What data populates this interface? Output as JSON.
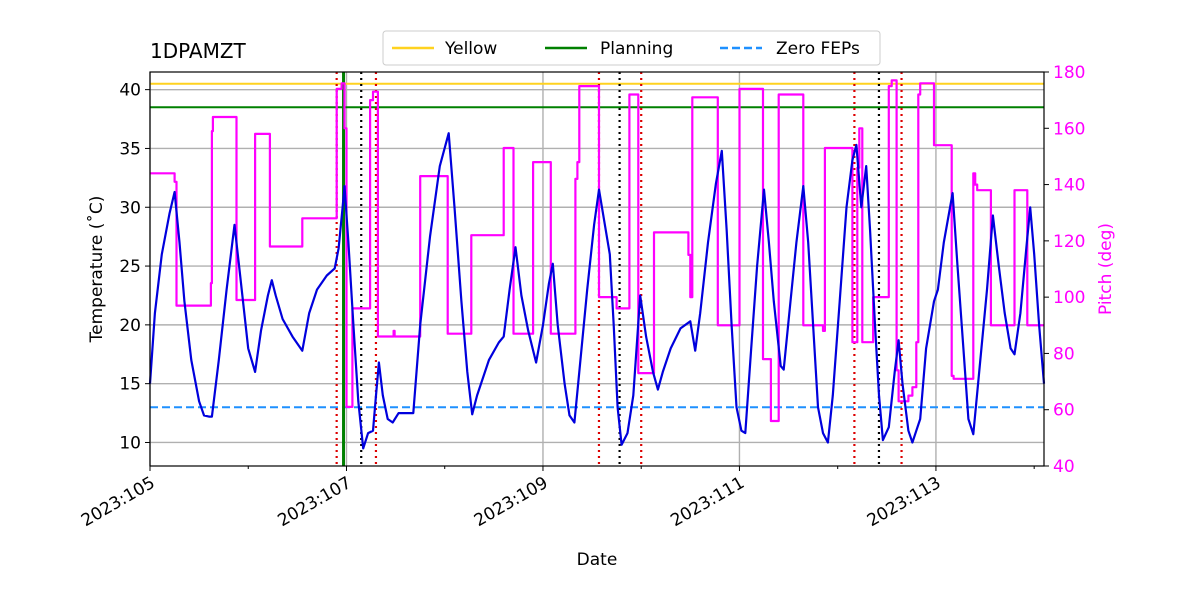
{
  "chart_data": {
    "type": "line",
    "title": "1DPAMZT",
    "xlabel": "Date",
    "ylabel": "Temperature ($^\\circ$C)",
    "ylabel_display": "Temperature (˚C)",
    "y2label": "Pitch (deg)",
    "xlim": [
      105.0,
      114.1
    ],
    "ylim": [
      8.0,
      41.5
    ],
    "y2lim": [
      40,
      180
    ],
    "x_ticks": [
      105,
      107,
      109,
      111,
      113
    ],
    "x_tick_labels": [
      "2023:105",
      "2023:107",
      "2023:109",
      "2023:111",
      "2023:113"
    ],
    "y_ticks": [
      10,
      15,
      20,
      25,
      30,
      35,
      40
    ],
    "y2_ticks": [
      40,
      60,
      80,
      100,
      120,
      140,
      160,
      180
    ],
    "grid": true,
    "legend_position": "top-center",
    "limits": [
      {
        "name": "Yellow",
        "value": 40.5,
        "color": "#ffd21f",
        "style": "solid"
      },
      {
        "name": "Planning",
        "value": 38.5,
        "color": "#008000",
        "style": "solid"
      },
      {
        "name": "Zero FEPs",
        "value": 13.0,
        "color": "#1e90ff",
        "style": "dashed"
      }
    ],
    "legend": [
      "Yellow",
      "Planning",
      "Zero FEPs"
    ],
    "events_red": [
      106.9,
      107.3,
      109.57,
      110.0,
      112.17,
      112.65
    ],
    "events_black": [
      107.15,
      109.78,
      112.42
    ],
    "event_green": 106.97,
    "series": [
      {
        "name": "1DPAMZT",
        "axis": "left",
        "color": "#0000dd",
        "points": [
          [
            105.0,
            15.0
          ],
          [
            105.05,
            21.0
          ],
          [
            105.12,
            26.0
          ],
          [
            105.2,
            29.5
          ],
          [
            105.25,
            31.3
          ],
          [
            105.3,
            27.0
          ],
          [
            105.35,
            22.0
          ],
          [
            105.42,
            17.0
          ],
          [
            105.5,
            13.5
          ],
          [
            105.55,
            12.3
          ],
          [
            105.6,
            12.2
          ],
          [
            105.63,
            12.2
          ],
          [
            105.7,
            17.0
          ],
          [
            105.78,
            23.0
          ],
          [
            105.86,
            28.5
          ],
          [
            105.92,
            24.0
          ],
          [
            106.0,
            18.0
          ],
          [
            106.07,
            16.0
          ],
          [
            106.13,
            19.5
          ],
          [
            106.2,
            22.5
          ],
          [
            106.24,
            23.8
          ],
          [
            106.28,
            22.5
          ],
          [
            106.35,
            20.5
          ],
          [
            106.45,
            19.0
          ],
          [
            106.55,
            17.8
          ],
          [
            106.62,
            21.0
          ],
          [
            106.7,
            23.0
          ],
          [
            106.8,
            24.2
          ],
          [
            106.88,
            24.8
          ],
          [
            106.92,
            26.5
          ],
          [
            106.96,
            30.0
          ],
          [
            106.98,
            31.8
          ],
          [
            107.02,
            27.0
          ],
          [
            107.07,
            20.0
          ],
          [
            107.12,
            13.5
          ],
          [
            107.17,
            9.5
          ],
          [
            107.22,
            10.8
          ],
          [
            107.27,
            11.0
          ],
          [
            107.3,
            14.0
          ],
          [
            107.33,
            16.8
          ],
          [
            107.37,
            14.0
          ],
          [
            107.42,
            12.0
          ],
          [
            107.47,
            11.7
          ],
          [
            107.53,
            12.5
          ],
          [
            107.62,
            12.5
          ],
          [
            107.68,
            12.5
          ],
          [
            107.75,
            20.0
          ],
          [
            107.85,
            27.5
          ],
          [
            107.95,
            33.5
          ],
          [
            108.04,
            36.3
          ],
          [
            108.1,
            30.0
          ],
          [
            108.17,
            22.0
          ],
          [
            108.23,
            16.0
          ],
          [
            108.28,
            12.4
          ],
          [
            108.33,
            14.0
          ],
          [
            108.45,
            17.0
          ],
          [
            108.55,
            18.5
          ],
          [
            108.6,
            19.0
          ],
          [
            108.66,
            23.0
          ],
          [
            108.72,
            26.6
          ],
          [
            108.78,
            22.5
          ],
          [
            108.85,
            19.5
          ],
          [
            108.93,
            16.8
          ],
          [
            109.0,
            20.0
          ],
          [
            109.06,
            23.5
          ],
          [
            109.1,
            25.2
          ],
          [
            109.15,
            20.0
          ],
          [
            109.22,
            15.0
          ],
          [
            109.27,
            12.3
          ],
          [
            109.32,
            11.7
          ],
          [
            109.37,
            16.0
          ],
          [
            109.45,
            23.0
          ],
          [
            109.52,
            28.5
          ],
          [
            109.57,
            31.5
          ],
          [
            109.62,
            29.0
          ],
          [
            109.68,
            26.0
          ],
          [
            109.72,
            20.0
          ],
          [
            109.76,
            13.0
          ],
          [
            109.8,
            9.8
          ],
          [
            109.86,
            10.8
          ],
          [
            109.92,
            14.0
          ],
          [
            109.99,
            22.5
          ],
          [
            110.05,
            19.0
          ],
          [
            110.12,
            16.0
          ],
          [
            110.17,
            14.5
          ],
          [
            110.22,
            16.0
          ],
          [
            110.3,
            18.0
          ],
          [
            110.4,
            19.7
          ],
          [
            110.5,
            20.3
          ],
          [
            110.55,
            17.8
          ],
          [
            110.6,
            21.0
          ],
          [
            110.68,
            27.0
          ],
          [
            110.76,
            32.0
          ],
          [
            110.82,
            34.8
          ],
          [
            110.87,
            28.0
          ],
          [
            110.92,
            20.0
          ],
          [
            110.97,
            13.0
          ],
          [
            111.02,
            11.0
          ],
          [
            111.06,
            10.8
          ],
          [
            111.12,
            18.0
          ],
          [
            111.18,
            25.0
          ],
          [
            111.25,
            31.5
          ],
          [
            111.3,
            27.0
          ],
          [
            111.35,
            22.0
          ],
          [
            111.42,
            16.5
          ],
          [
            111.45,
            16.2
          ],
          [
            111.52,
            22.0
          ],
          [
            111.58,
            27.0
          ],
          [
            111.65,
            31.8
          ],
          [
            111.7,
            27.0
          ],
          [
            111.75,
            20.0
          ],
          [
            111.8,
            13.0
          ],
          [
            111.85,
            10.8
          ],
          [
            111.9,
            10.0
          ],
          [
            111.95,
            14.0
          ],
          [
            112.02,
            22.0
          ],
          [
            112.09,
            30.0
          ],
          [
            112.15,
            34.0
          ],
          [
            112.19,
            35.3
          ],
          [
            112.24,
            30.0
          ],
          [
            112.29,
            33.5
          ],
          [
            112.33,
            28.0
          ],
          [
            112.38,
            20.0
          ],
          [
            112.42,
            14.0
          ],
          [
            112.46,
            10.2
          ],
          [
            112.52,
            11.3
          ],
          [
            112.58,
            16.0
          ],
          [
            112.62,
            18.7
          ],
          [
            112.66,
            15.0
          ],
          [
            112.72,
            11.0
          ],
          [
            112.76,
            10.0
          ],
          [
            112.8,
            11.0
          ],
          [
            112.84,
            12.0
          ],
          [
            112.9,
            18.0
          ],
          [
            112.98,
            22.0
          ],
          [
            113.02,
            23.0
          ],
          [
            113.08,
            27.0
          ],
          [
            113.17,
            31.2
          ],
          [
            113.22,
            25.0
          ],
          [
            113.28,
            18.0
          ],
          [
            113.33,
            12.0
          ],
          [
            113.38,
            10.7
          ],
          [
            113.44,
            16.0
          ],
          [
            113.52,
            23.0
          ],
          [
            113.58,
            29.3
          ],
          [
            113.64,
            25.0
          ],
          [
            113.7,
            21.0
          ],
          [
            113.76,
            18.0
          ],
          [
            113.8,
            17.5
          ],
          [
            113.86,
            21.0
          ],
          [
            113.92,
            26.5
          ],
          [
            113.96,
            30.0
          ],
          [
            114.0,
            26.0
          ],
          [
            114.05,
            20.0
          ],
          [
            114.1,
            15.0
          ]
        ]
      },
      {
        "name": "Pitch",
        "axis": "right",
        "color": "#ff00ff",
        "points": [
          [
            105.0,
            144
          ],
          [
            105.25,
            144
          ],
          [
            105.25,
            141
          ],
          [
            105.27,
            141
          ],
          [
            105.27,
            97
          ],
          [
            105.62,
            97
          ],
          [
            105.62,
            105
          ],
          [
            105.63,
            105
          ],
          [
            105.63,
            159
          ],
          [
            105.64,
            159
          ],
          [
            105.64,
            164
          ],
          [
            105.88,
            164
          ],
          [
            105.88,
            99
          ],
          [
            106.07,
            99
          ],
          [
            106.07,
            158
          ],
          [
            106.22,
            158
          ],
          [
            106.22,
            118
          ],
          [
            106.55,
            118
          ],
          [
            106.55,
            128
          ],
          [
            106.9,
            128
          ],
          [
            106.9,
            174
          ],
          [
            106.95,
            174
          ],
          [
            106.95,
            176
          ],
          [
            106.98,
            176
          ],
          [
            106.98,
            160
          ],
          [
            107.0,
            160
          ],
          [
            107.0,
            61
          ],
          [
            107.06,
            61
          ],
          [
            107.06,
            96
          ],
          [
            107.24,
            96
          ],
          [
            107.24,
            170
          ],
          [
            107.27,
            170
          ],
          [
            107.27,
            173
          ],
          [
            107.32,
            173
          ],
          [
            107.32,
            86
          ],
          [
            107.48,
            86
          ],
          [
            107.48,
            88
          ],
          [
            107.49,
            88
          ],
          [
            107.49,
            86
          ],
          [
            107.75,
            86
          ],
          [
            107.75,
            143
          ],
          [
            108.03,
            143
          ],
          [
            108.03,
            87
          ],
          [
            108.27,
            87
          ],
          [
            108.27,
            122
          ],
          [
            108.6,
            122
          ],
          [
            108.6,
            153
          ],
          [
            108.7,
            153
          ],
          [
            108.7,
            87
          ],
          [
            108.9,
            87
          ],
          [
            108.9,
            148
          ],
          [
            109.08,
            148
          ],
          [
            109.08,
            87
          ],
          [
            109.33,
            87
          ],
          [
            109.33,
            142
          ],
          [
            109.35,
            142
          ],
          [
            109.35,
            148
          ],
          [
            109.37,
            148
          ],
          [
            109.37,
            175
          ],
          [
            109.57,
            175
          ],
          [
            109.57,
            100
          ],
          [
            109.75,
            100
          ],
          [
            109.75,
            96
          ],
          [
            109.88,
            96
          ],
          [
            109.88,
            172
          ],
          [
            109.97,
            172
          ],
          [
            109.97,
            73
          ],
          [
            110.13,
            73
          ],
          [
            110.13,
            123
          ],
          [
            110.48,
            123
          ],
          [
            110.48,
            115
          ],
          [
            110.5,
            115
          ],
          [
            110.5,
            100
          ],
          [
            110.52,
            100
          ],
          [
            110.52,
            170
          ],
          [
            110.52,
            171
          ],
          [
            110.78,
            171
          ],
          [
            110.78,
            90
          ],
          [
            111.0,
            90
          ],
          [
            111.0,
            174
          ],
          [
            111.24,
            174
          ],
          [
            111.24,
            78
          ],
          [
            111.32,
            78
          ],
          [
            111.32,
            56
          ],
          [
            111.4,
            56
          ],
          [
            111.4,
            172
          ],
          [
            111.65,
            172
          ],
          [
            111.65,
            90
          ],
          [
            111.85,
            90
          ],
          [
            111.85,
            88
          ],
          [
            111.87,
            88
          ],
          [
            111.87,
            153
          ],
          [
            112.15,
            153
          ],
          [
            112.15,
            84
          ],
          [
            112.2,
            84
          ],
          [
            112.2,
            146
          ],
          [
            112.22,
            146
          ],
          [
            112.22,
            160
          ],
          [
            112.25,
            160
          ],
          [
            112.25,
            84
          ],
          [
            112.36,
            84
          ],
          [
            112.36,
            100
          ],
          [
            112.52,
            100
          ],
          [
            112.52,
            175
          ],
          [
            112.55,
            175
          ],
          [
            112.55,
            177
          ],
          [
            112.6,
            177
          ],
          [
            112.6,
            74
          ],
          [
            112.62,
            74
          ],
          [
            112.62,
            63
          ],
          [
            112.72,
            63
          ],
          [
            112.72,
            65
          ],
          [
            112.76,
            65
          ],
          [
            112.76,
            68
          ],
          [
            112.8,
            68
          ],
          [
            112.8,
            84
          ],
          [
            112.82,
            84
          ],
          [
            112.82,
            172
          ],
          [
            112.84,
            172
          ],
          [
            112.84,
            176
          ],
          [
            112.98,
            176
          ],
          [
            112.98,
            154
          ],
          [
            113.16,
            154
          ],
          [
            113.16,
            72
          ],
          [
            113.18,
            72
          ],
          [
            113.18,
            71
          ],
          [
            113.38,
            71
          ],
          [
            113.38,
            144
          ],
          [
            113.4,
            144
          ],
          [
            113.4,
            140
          ],
          [
            113.42,
            140
          ],
          [
            113.42,
            138
          ],
          [
            113.56,
            138
          ],
          [
            113.56,
            90
          ],
          [
            113.8,
            90
          ],
          [
            113.8,
            138
          ],
          [
            113.93,
            138
          ],
          [
            113.93,
            90
          ],
          [
            114.1,
            90
          ]
        ]
      }
    ]
  }
}
